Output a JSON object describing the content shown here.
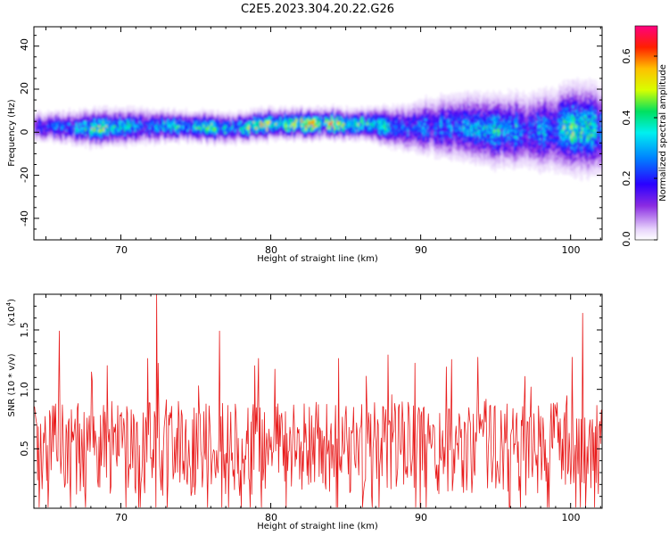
{
  "title": "C2E5.2023.304.20.22.G26",
  "colors": {
    "snr_line": "#e81c1c",
    "axis": "#000000"
  },
  "chart_data": [
    {
      "type": "heatmap",
      "xlabel": "Height of straight line (km)",
      "ylabel": "Frequency (Hz)",
      "xlim": [
        64.2,
        102.1
      ],
      "ylim": [
        -50,
        49
      ],
      "x_ticks": [
        "70",
        "80",
        "90",
        "100"
      ],
      "y_ticks": [
        "40",
        "20",
        "0",
        "-20",
        "-40"
      ],
      "colorbar": {
        "label": "Normalized spectral amplitude",
        "range": [
          0.0,
          0.7
        ],
        "ticks": [
          "0.0",
          "0.2",
          "0.4",
          "0.6"
        ]
      },
      "ridge": {
        "x": [
          65,
          68,
          71,
          74,
          77,
          80,
          83,
          86,
          89,
          92,
          95,
          98,
          100,
          102
        ],
        "center_freq": [
          3,
          2,
          3,
          3,
          2,
          4,
          4,
          4,
          2,
          3,
          1,
          1,
          2,
          1
        ],
        "half_width": [
          5,
          6,
          6,
          5,
          5,
          5,
          5,
          5,
          8,
          11,
          12,
          13,
          15,
          15
        ],
        "peak_amplitude": [
          0.3,
          0.45,
          0.35,
          0.4,
          0.4,
          0.55,
          0.6,
          0.5,
          0.3,
          0.35,
          0.4,
          0.35,
          0.45,
          0.35
        ]
      },
      "grid": false
    },
    {
      "type": "line",
      "xlabel": "Height of straight line (km)",
      "ylabel": "SNR (10 * v/v)",
      "y_multiplier": "(x10",
      "y_multiplier_exp": "4",
      "xlim": [
        64.2,
        102.1
      ],
      "ylim": [
        0,
        1.8
      ],
      "x_ticks": [
        "70",
        "80",
        "90",
        "100"
      ],
      "y_ticks": [
        "0.5",
        "1.0",
        "1.5"
      ],
      "series": [
        {
          "x_range": [
            64.2,
            102.1
          ],
          "samples": 760,
          "typical_range": [
            0.1,
            0.9
          ],
          "peaks": [
            {
              "x": 65.9,
              "y": 1.49
            },
            {
              "x": 69.1,
              "y": 1.2
            },
            {
              "x": 71.8,
              "y": 1.26
            },
            {
              "x": 72.4,
              "y": 1.8
            },
            {
              "x": 76.6,
              "y": 1.49
            },
            {
              "x": 79.2,
              "y": 1.26
            },
            {
              "x": 80.3,
              "y": 1.17
            },
            {
              "x": 84.5,
              "y": 1.26
            },
            {
              "x": 87.8,
              "y": 1.29
            },
            {
              "x": 89.6,
              "y": 1.22
            },
            {
              "x": 93.8,
              "y": 1.27
            },
            {
              "x": 100.1,
              "y": 1.27
            },
            {
              "x": 100.8,
              "y": 1.64
            }
          ]
        }
      ],
      "grid": false
    }
  ]
}
